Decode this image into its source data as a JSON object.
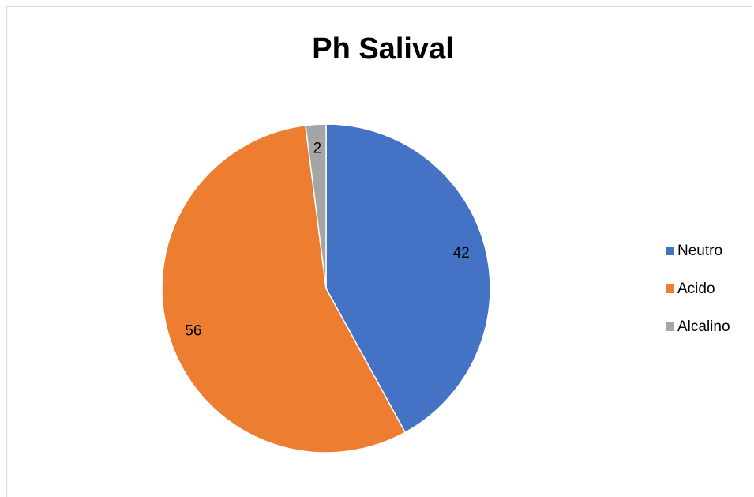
{
  "chart_data": {
    "type": "pie",
    "title": "Ph Salival",
    "categories": [
      "Neutro",
      "Acido",
      "Alcalino"
    ],
    "values": [
      42,
      56,
      2
    ],
    "colors": [
      "#4472c4",
      "#ed7d31",
      "#a5a5a5"
    ],
    "legend": "right"
  }
}
